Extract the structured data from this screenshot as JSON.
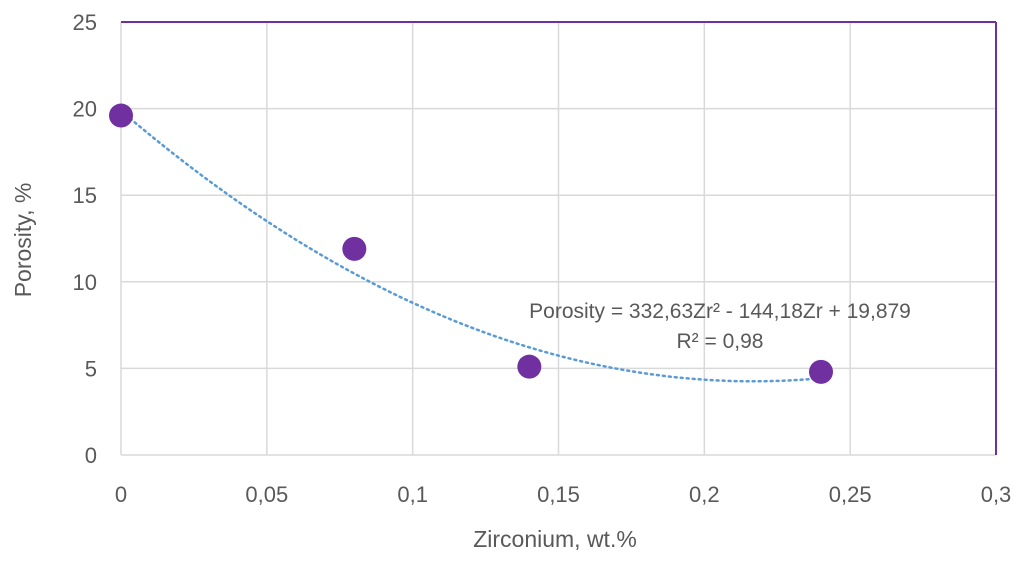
{
  "chart_data": {
    "type": "scatter",
    "title": "",
    "xlabel": "Zirconium, wt.%",
    "ylabel": "Porosity, %",
    "xlim": [
      0,
      0.3
    ],
    "ylim": [
      0,
      25
    ],
    "x_ticks": [
      0,
      0.05,
      0.1,
      0.15,
      0.2,
      0.25,
      0.3
    ],
    "x_tick_labels": [
      "0",
      "0,05",
      "0,1",
      "0,15",
      "0,2",
      "0,25",
      "0,3"
    ],
    "y_ticks": [
      0,
      5,
      10,
      15,
      20,
      25
    ],
    "y_tick_labels": [
      "0",
      "5",
      "10",
      "15",
      "20",
      "25"
    ],
    "grid": true,
    "series": [
      {
        "x": [
          0,
          0.08,
          0.14,
          0.24
        ],
        "y": [
          19.6,
          11.9,
          5.1,
          4.8
        ],
        "color": "#7030A0"
      }
    ],
    "trendline": {
      "type": "polynomial",
      "coefficients": [
        332.63,
        -144.18,
        19.879
      ],
      "x_range": [
        0,
        0.24
      ],
      "color": "#5B9BD5",
      "style": "dotted",
      "equation_label": "Porosity = 332,63Zr² - 144,18Zr + 19,879",
      "r2_label": "R² = 0,98"
    },
    "plot_border_color": "#7030A0",
    "grid_color": "#d9d9d9"
  }
}
